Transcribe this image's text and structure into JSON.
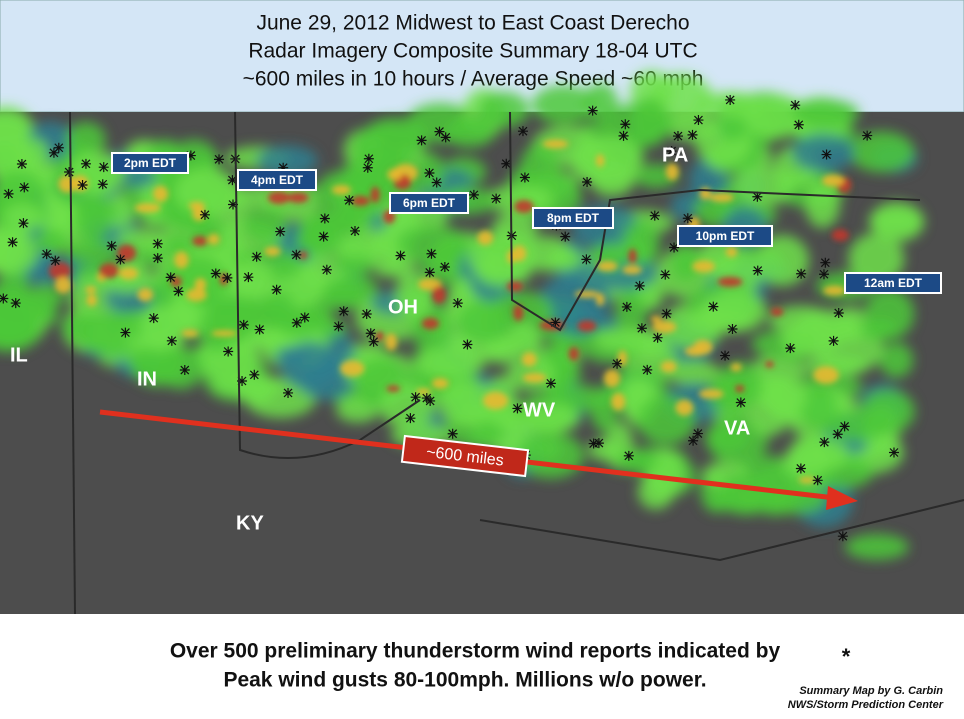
{
  "header": {
    "lines": [
      "June 29, 2012 Midwest to East Coast Derecho",
      "Radar Imagery Composite Summary 18-04 UTC",
      "~600 miles in 10 hours / Average Speed ~60 mph"
    ]
  },
  "map": {
    "time_labels": [
      "2pm EDT",
      "4pm EDT",
      "6pm EDT",
      "8pm EDT",
      "10pm EDT",
      "12am EDT"
    ],
    "states": [
      "PA",
      "OH",
      "IL",
      "IN",
      "WV",
      "VA",
      "KY"
    ],
    "arrow_label": "~600 miles"
  },
  "footer": {
    "lines": [
      "Over 500 preliminary thunderstorm wind reports indicated by",
      "Peak wind gusts 80-100mph. Millions w/o power."
    ],
    "symbol": "*",
    "credit": [
      "Summary Map by G. Carbin",
      "NWS/Storm Prediction Center"
    ]
  }
}
